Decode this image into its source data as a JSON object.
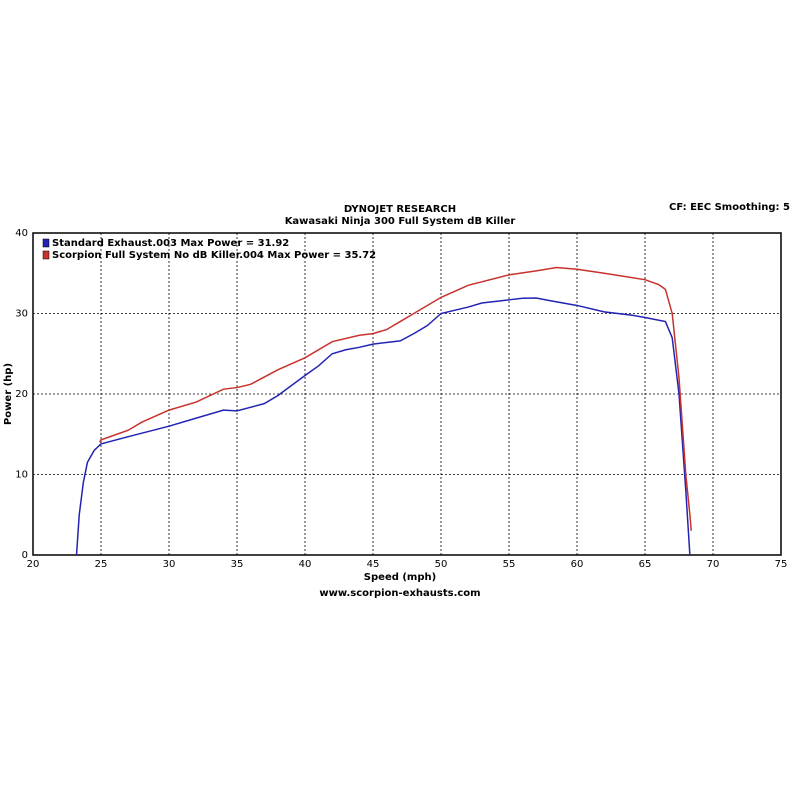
{
  "chart_data": {
    "type": "line",
    "title": "DYNOJET RESEARCH",
    "subtitle": "Kawasaki Ninja 300 Full System dB Killer",
    "header_right": "CF: EEC  Smoothing: 5",
    "x_label": "Speed (mph)",
    "y_label": "Power (hp)",
    "footer": "www.scorpion-exhausts.com",
    "xlim": [
      20,
      75
    ],
    "xticks": [
      20,
      25,
      30,
      35,
      40,
      45,
      50,
      55,
      60,
      65,
      70,
      75
    ],
    "ylim": [
      0,
      40
    ],
    "yticks": [
      0,
      10,
      20,
      30,
      40
    ],
    "grid": true,
    "legend": "upper left",
    "series": [
      {
        "name": "Standard Exhaust.003 Max Power = 31.92",
        "color": "#2323b4",
        "x": [
          23.2,
          23.4,
          23.7,
          24,
          24.5,
          25,
          27,
          30,
          32,
          34,
          35,
          37,
          38,
          40,
          41,
          42,
          43,
          44,
          45,
          47,
          48,
          49,
          50,
          52,
          53,
          55,
          56,
          57,
          58,
          60,
          62,
          64,
          65,
          66.5,
          67,
          67.5,
          68,
          68.3
        ],
        "values": [
          0,
          5,
          9,
          11.5,
          13,
          13.8,
          14.7,
          16,
          17,
          18,
          17.9,
          18.8,
          19.8,
          22.3,
          23.5,
          25,
          25.5,
          25.8,
          26.2,
          26.6,
          27.5,
          28.5,
          30,
          30.8,
          31.3,
          31.7,
          31.9,
          31.92,
          31.6,
          31,
          30.2,
          29.8,
          29.5,
          29,
          27,
          20,
          8,
          0
        ]
      },
      {
        "name": "Scorpion Full System No dB Killer.004 Max Power = 35.72",
        "color": "#c8322d",
        "x": [
          24.9,
          25,
          27,
          28,
          30,
          32,
          34,
          35,
          36,
          38,
          40,
          42,
          44,
          45,
          46,
          47,
          48,
          50,
          52,
          55,
          57,
          58.5,
          60,
          62,
          65,
          66,
          66.5,
          67,
          67.5,
          68,
          68.3,
          68.4
        ],
        "values": [
          14,
          14.3,
          15.5,
          16.5,
          18,
          19,
          20.6,
          20.8,
          21.2,
          23,
          24.5,
          26.5,
          27.3,
          27.5,
          28,
          29,
          30,
          32,
          33.5,
          34.8,
          35.3,
          35.72,
          35.5,
          35,
          34.2,
          33.6,
          33,
          30,
          22,
          10,
          5,
          3
        ]
      }
    ]
  }
}
